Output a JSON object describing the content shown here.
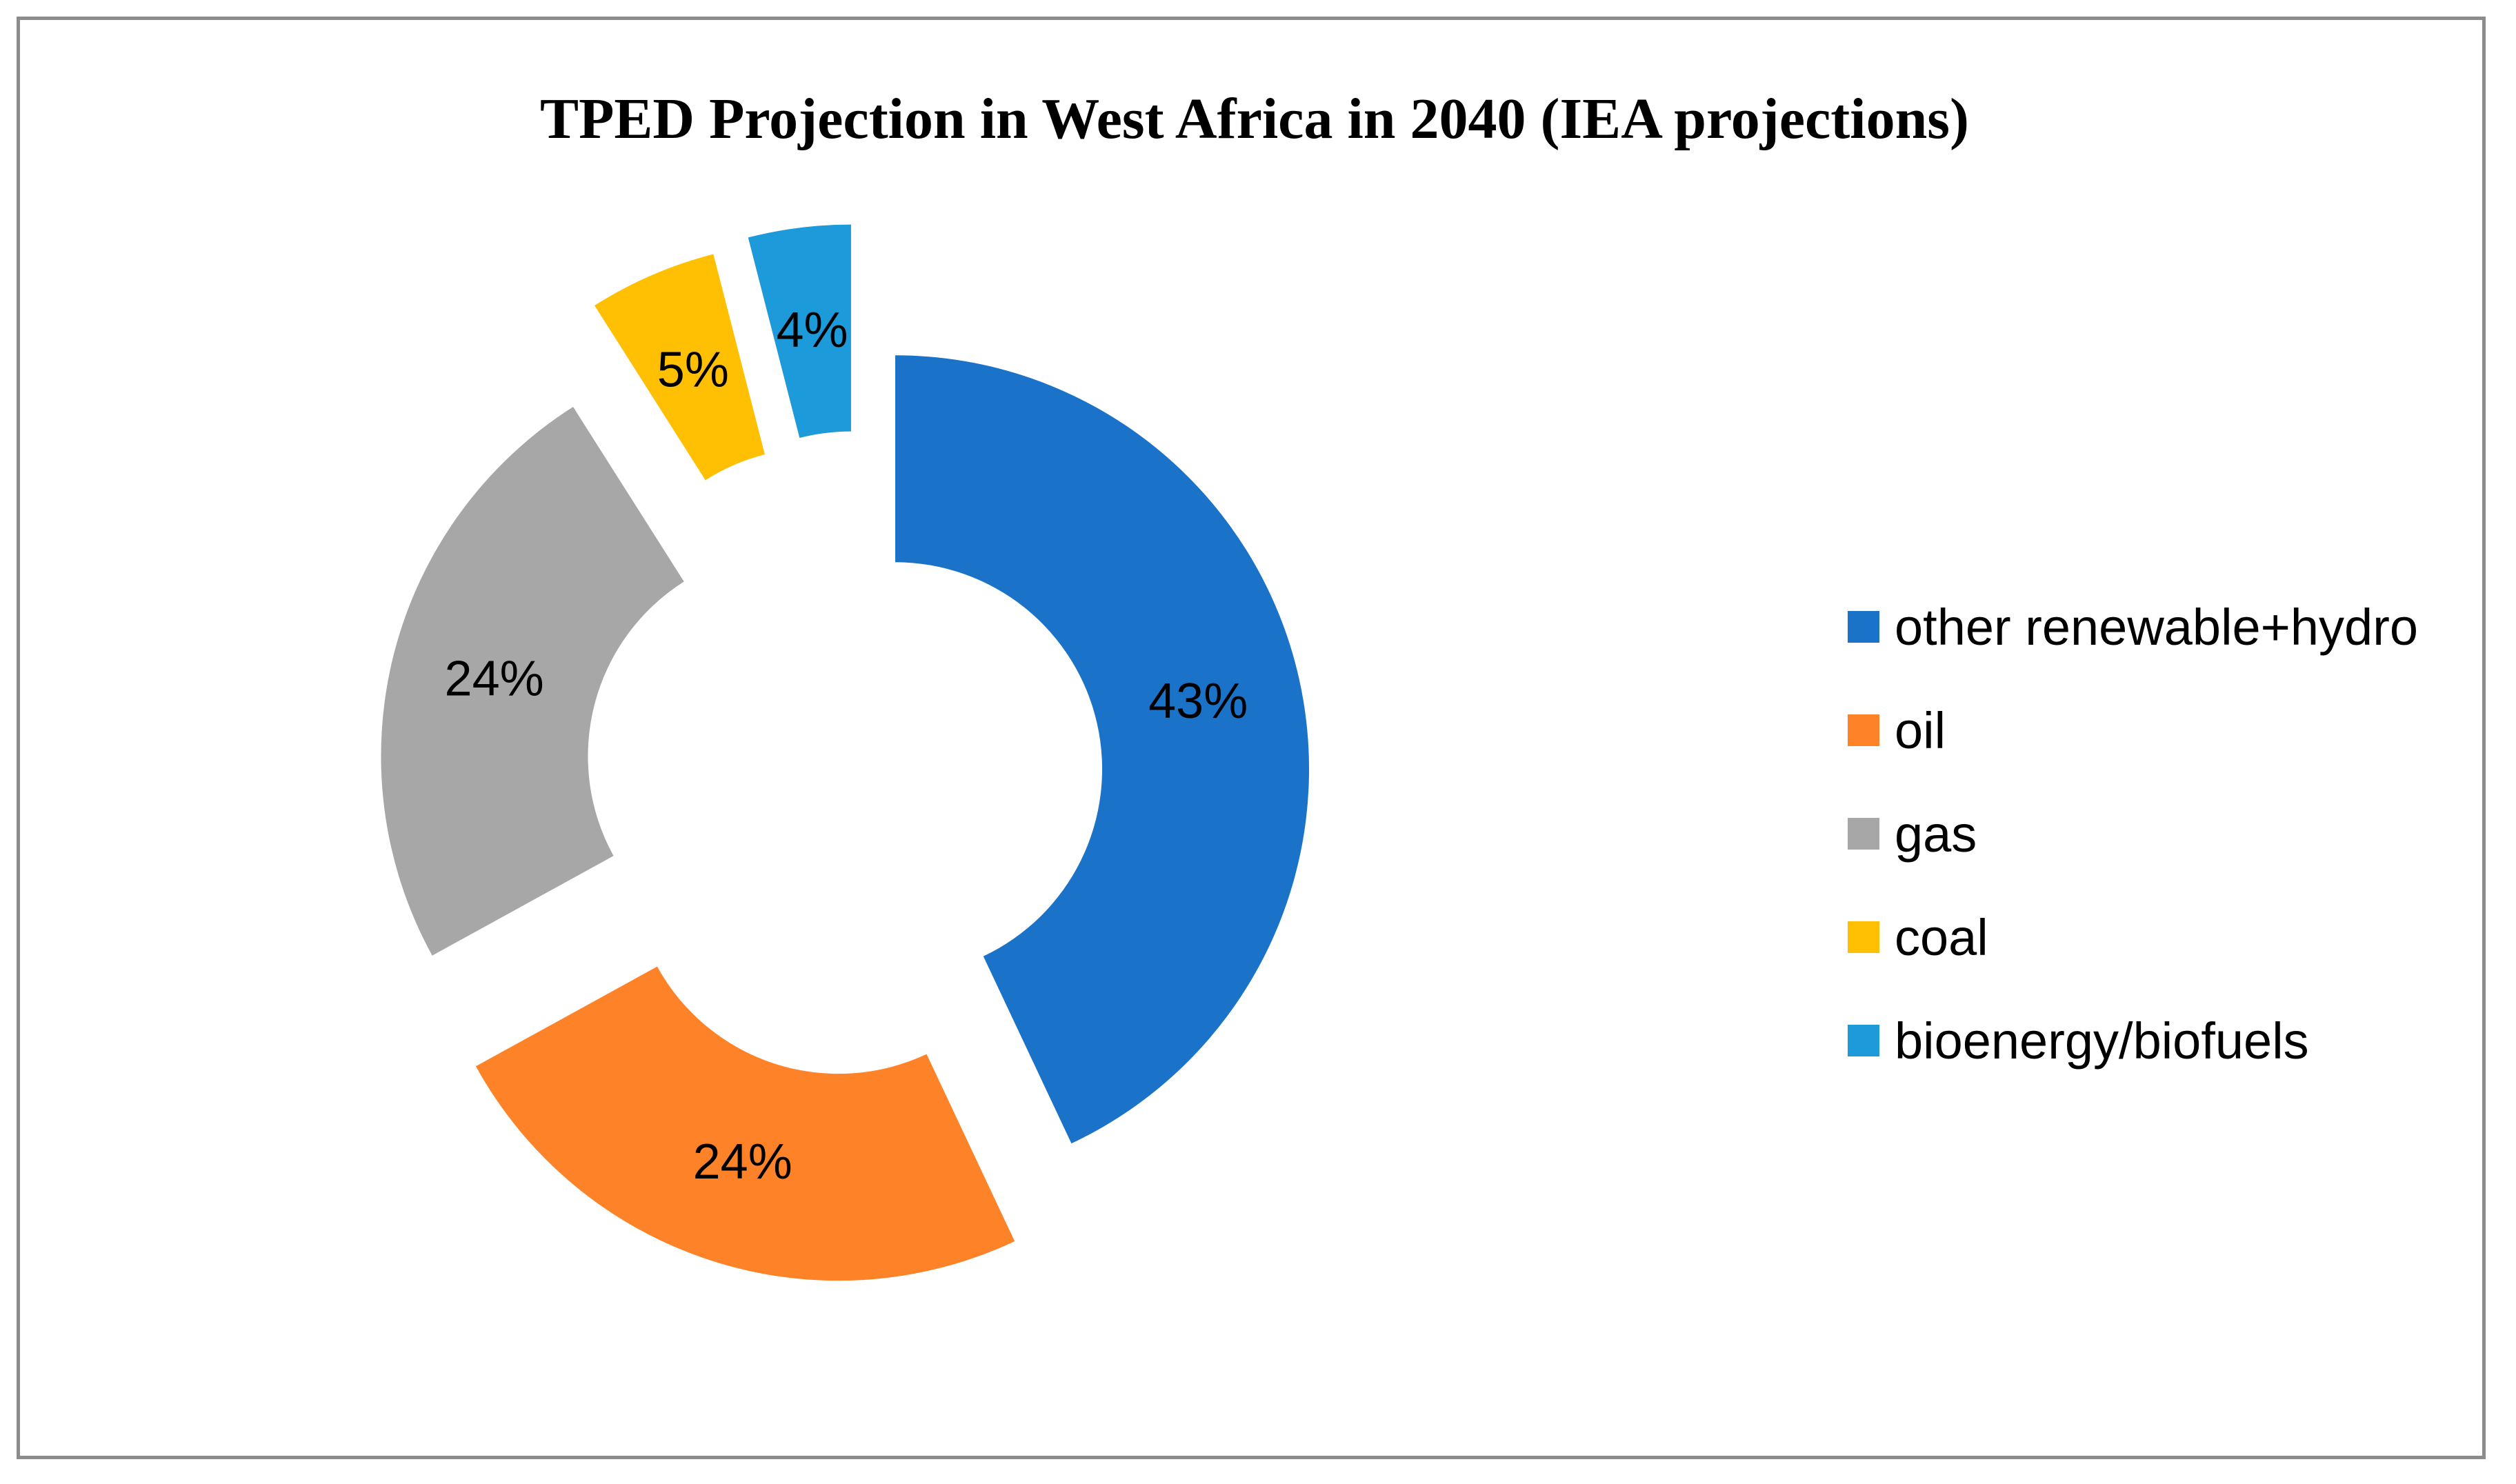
{
  "chart_data": {
    "type": "pie",
    "variant": "exploded-donut",
    "title": "TPED Projection in West Africa in 2040 (IEA projections)",
    "slices": [
      {
        "name": "other renewable+hydro",
        "value": 43,
        "label": "43%",
        "color": "#1a73c9"
      },
      {
        "name": "oil",
        "value": 24,
        "label": "24%",
        "color": "#fe8228"
      },
      {
        "name": "gas",
        "value": 24,
        "label": "24%",
        "color": "#a7a7a7"
      },
      {
        "name": "coal",
        "value": 5,
        "label": "5%",
        "color": "#ffc004"
      },
      {
        "name": "bioenergy/biofuels",
        "value": 4,
        "label": "4%",
        "color": "#1c9ad9"
      }
    ],
    "legend_position": "right"
  }
}
